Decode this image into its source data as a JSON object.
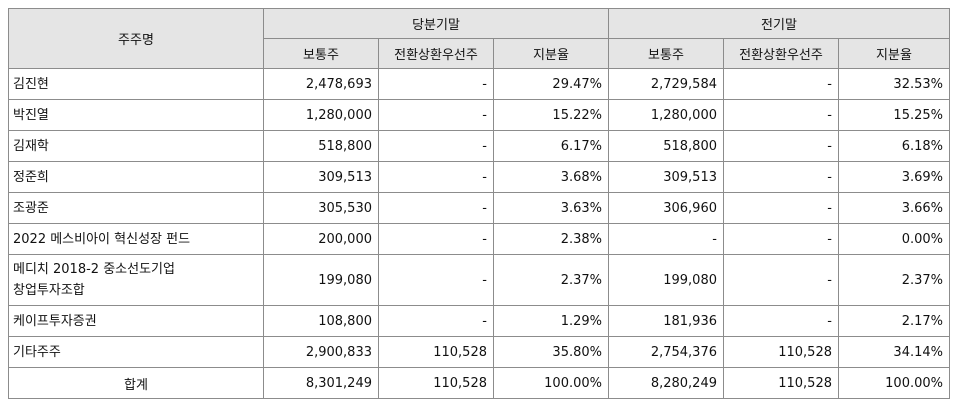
{
  "headers": {
    "shareholder": "주주명",
    "current_period": "당분기말",
    "previous_period": "전기말",
    "common": "보통주",
    "convertible_preferred": "전환상환우선주",
    "share_ratio": "지분율"
  },
  "rows": [
    {
      "name": "김진현",
      "cur_common": "2,478,693",
      "cur_pref": "-",
      "cur_ratio": "29.47%",
      "prev_common": "2,729,584",
      "prev_pref": "-",
      "prev_ratio": "32.53%"
    },
    {
      "name": "박진열",
      "cur_common": "1,280,000",
      "cur_pref": "-",
      "cur_ratio": "15.22%",
      "prev_common": "1,280,000",
      "prev_pref": "-",
      "prev_ratio": "15.25%"
    },
    {
      "name": "김재학",
      "cur_common": "518,800",
      "cur_pref": "-",
      "cur_ratio": "6.17%",
      "prev_common": "518,800",
      "prev_pref": "-",
      "prev_ratio": "6.18%"
    },
    {
      "name": "정준희",
      "cur_common": "309,513",
      "cur_pref": "-",
      "cur_ratio": "3.68%",
      "prev_common": "309,513",
      "prev_pref": "-",
      "prev_ratio": "3.69%"
    },
    {
      "name": "조광준",
      "cur_common": "305,530",
      "cur_pref": "-",
      "cur_ratio": "3.63%",
      "prev_common": "306,960",
      "prev_pref": "-",
      "prev_ratio": "3.66%"
    },
    {
      "name": "2022 메스비아이 혁신성장 펀드",
      "cur_common": "200,000",
      "cur_pref": "-",
      "cur_ratio": "2.38%",
      "prev_common": "-",
      "prev_pref": "-",
      "prev_ratio": "0.00%"
    },
    {
      "name_line1": "메디치 2018-2 중소선도기업",
      "name_line2": "창업투자조합",
      "cur_common": "199,080",
      "cur_pref": "-",
      "cur_ratio": "2.37%",
      "prev_common": "199,080",
      "prev_pref": "-",
      "prev_ratio": "2.37%"
    },
    {
      "name": "케이프투자증권",
      "cur_common": "108,800",
      "cur_pref": "-",
      "cur_ratio": "1.29%",
      "prev_common": "181,936",
      "prev_pref": "-",
      "prev_ratio": "2.17%"
    },
    {
      "name": "기타주주",
      "cur_common": "2,900,833",
      "cur_pref": "110,528",
      "cur_ratio": "35.80%",
      "prev_common": "2,754,376",
      "prev_pref": "110,528",
      "prev_ratio": "34.14%"
    }
  ],
  "total": {
    "name": "합계",
    "cur_common": "8,301,249",
    "cur_pref": "110,528",
    "cur_ratio": "100.00%",
    "prev_common": "8,280,249",
    "prev_pref": "110,528",
    "prev_ratio": "100.00%"
  }
}
